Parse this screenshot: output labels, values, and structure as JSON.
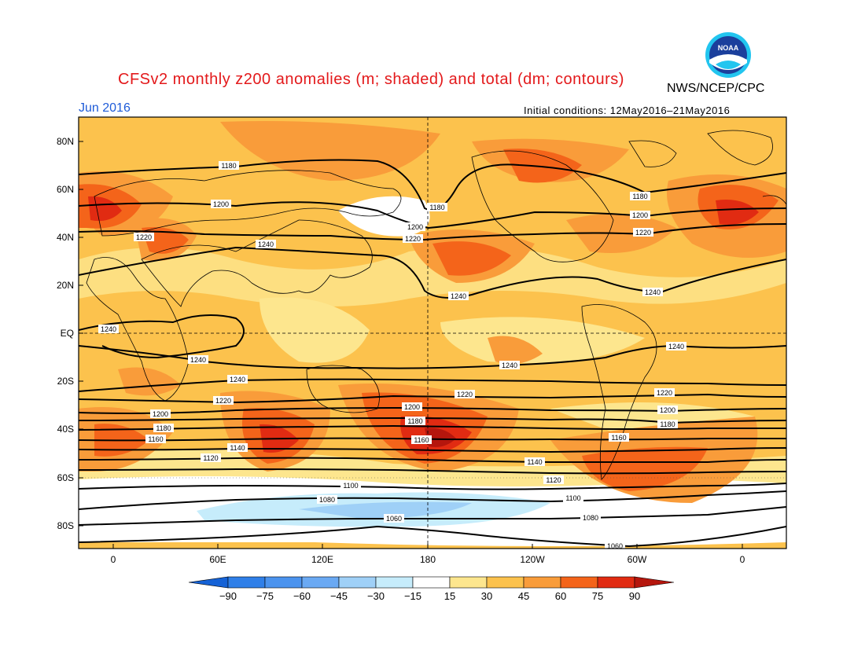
{
  "title": "CFSv2 monthly z200 anomalies (m; shaded) and total (dm; contours)",
  "organization": "NWS/NCEP/CPC",
  "logo_text": "NOAA",
  "valid_month": "Jun 2016",
  "initial_conditions": "Initial conditions: 12May2016–21May2016",
  "latitude_ticks": [
    "80N",
    "60N",
    "40N",
    "20N",
    "EQ",
    "20S",
    "40S",
    "60S",
    "80S"
  ],
  "longitude_ticks": [
    "0",
    "60E",
    "120E",
    "180",
    "120W",
    "60W",
    "0"
  ],
  "colorbar": {
    "labels": [
      "-90",
      "-75",
      "-60",
      "-45",
      "-30",
      "-15",
      "15",
      "30",
      "45",
      "60",
      "75",
      "90"
    ],
    "colors": [
      "#1562d6",
      "#2f7fe8",
      "#4b93ee",
      "#6aa9f3",
      "#9fd0f7",
      "#c6ecfb",
      "#ffffff",
      "#fde68e",
      "#fcc24d",
      "#f99c3a",
      "#f4641a",
      "#e12b12",
      "#b5160d"
    ]
  },
  "contour_labels": [
    {
      "text": "1180",
      "id": "c1180a"
    },
    {
      "text": "1200",
      "id": "c1200a"
    },
    {
      "text": "1220",
      "id": "c1220a"
    },
    {
      "text": "1240",
      "id": "c1240a"
    },
    {
      "text": "1180",
      "id": "c1180b"
    },
    {
      "text": "1200",
      "id": "c1200b"
    },
    {
      "text": "1220",
      "id": "c1220b"
    },
    {
      "text": "1240",
      "id": "c1240b"
    },
    {
      "text": "1180",
      "id": "c1180c"
    },
    {
      "text": "1200",
      "id": "c1200c"
    },
    {
      "text": "1220",
      "id": "c1220c"
    },
    {
      "text": "1240",
      "id": "c1240c"
    },
    {
      "text": "1240",
      "id": "c1240d"
    },
    {
      "text": "1240",
      "id": "c1240e"
    },
    {
      "text": "1240",
      "id": "c1240f"
    },
    {
      "text": "1240",
      "id": "c1240g"
    },
    {
      "text": "1240",
      "id": "c1240h"
    },
    {
      "text": "1220",
      "id": "c1220d"
    },
    {
      "text": "1220",
      "id": "c1220e"
    },
    {
      "text": "1200",
      "id": "c1200d"
    },
    {
      "text": "1180",
      "id": "c1180d"
    },
    {
      "text": "1160",
      "id": "c1160a"
    },
    {
      "text": "1120",
      "id": "c1120a"
    },
    {
      "text": "1140",
      "id": "c1140a"
    },
    {
      "text": "1200",
      "id": "c1200e"
    },
    {
      "text": "1180",
      "id": "c1180e"
    },
    {
      "text": "1160",
      "id": "c1160b"
    },
    {
      "text": "1100",
      "id": "c1100a"
    },
    {
      "text": "1080",
      "id": "c1080a"
    },
    {
      "text": "1060",
      "id": "c1060a"
    },
    {
      "text": "1140",
      "id": "c1140b"
    },
    {
      "text": "1120",
      "id": "c1120b"
    },
    {
      "text": "1100",
      "id": "c1100b"
    },
    {
      "text": "1080",
      "id": "c1080b"
    },
    {
      "text": "1160",
      "id": "c1160c"
    },
    {
      "text": "1220",
      "id": "c1220f"
    },
    {
      "text": "1200",
      "id": "c1200f"
    },
    {
      "text": "1180",
      "id": "c1180f"
    },
    {
      "text": "1060",
      "id": "c1060b"
    }
  ]
}
